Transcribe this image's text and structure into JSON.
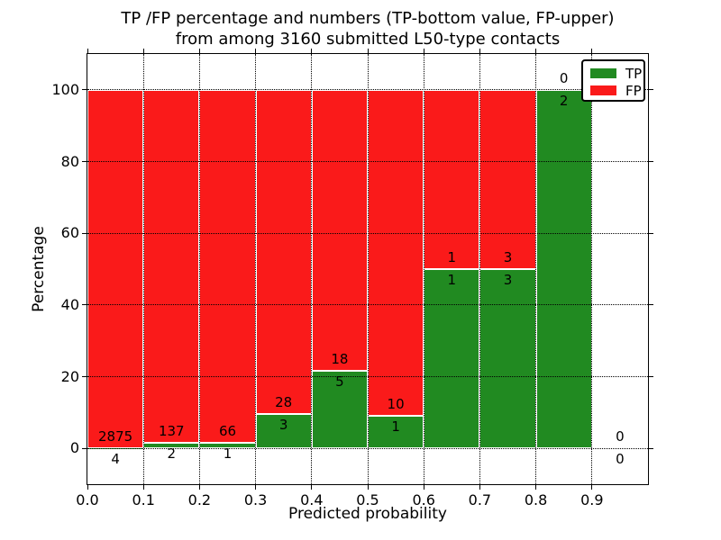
{
  "figure": {
    "title_line1": "TP /FP percentage and numbers (TP-bottom value, FP-upper)",
    "title_line2": "from among 3160 submitted L50-type contacts"
  },
  "chart_data": {
    "type": "bar",
    "subtype": "stacked-percentage-histogram",
    "title": "TP /FP percentage and numbers (TP-bottom value, FP-upper) from among 3160 submitted L50-type contacts",
    "xlabel": "Predicted probability",
    "ylabel": "Percentage",
    "total_contacts": 3160,
    "xlim": [
      0.0,
      1.0
    ],
    "ylim": [
      -10,
      110
    ],
    "xticks": [
      "0.0",
      "0.1",
      "0.2",
      "0.3",
      "0.4",
      "0.5",
      "0.6",
      "0.7",
      "0.8",
      "0.9"
    ],
    "yticks": [
      0,
      20,
      40,
      60,
      80,
      100
    ],
    "grid": true,
    "grid_style": "dotted",
    "bar_edge_color": "#ffffff",
    "colors": {
      "tp": "#218a21",
      "fp": "#fa1a1a"
    },
    "legend": {
      "position": "upper right",
      "entries": [
        {
          "label": "TP",
          "color_key": "tp"
        },
        {
          "label": "FP",
          "color_key": "fp"
        }
      ]
    },
    "bins": [
      {
        "range": [
          0.0,
          0.1
        ],
        "tp": 4,
        "fp": 2875,
        "tp_percent": 0.14
      },
      {
        "range": [
          0.1,
          0.2
        ],
        "tp": 2,
        "fp": 137,
        "tp_percent": 1.44
      },
      {
        "range": [
          0.2,
          0.3
        ],
        "tp": 1,
        "fp": 66,
        "tp_percent": 1.49
      },
      {
        "range": [
          0.3,
          0.4
        ],
        "tp": 3,
        "fp": 28,
        "tp_percent": 9.68
      },
      {
        "range": [
          0.4,
          0.5
        ],
        "tp": 5,
        "fp": 18,
        "tp_percent": 21.74
      },
      {
        "range": [
          0.5,
          0.6
        ],
        "tp": 1,
        "fp": 10,
        "tp_percent": 9.09
      },
      {
        "range": [
          0.6,
          0.7
        ],
        "tp": 1,
        "fp": 1,
        "tp_percent": 50.0
      },
      {
        "range": [
          0.7,
          0.8
        ],
        "tp": 3,
        "fp": 3,
        "tp_percent": 50.0
      },
      {
        "range": [
          0.8,
          0.9
        ],
        "tp": 2,
        "fp": 0,
        "tp_percent": 100.0
      },
      {
        "range": [
          0.9,
          1.0
        ],
        "tp": 0,
        "fp": 0,
        "tp_percent": null
      }
    ]
  }
}
